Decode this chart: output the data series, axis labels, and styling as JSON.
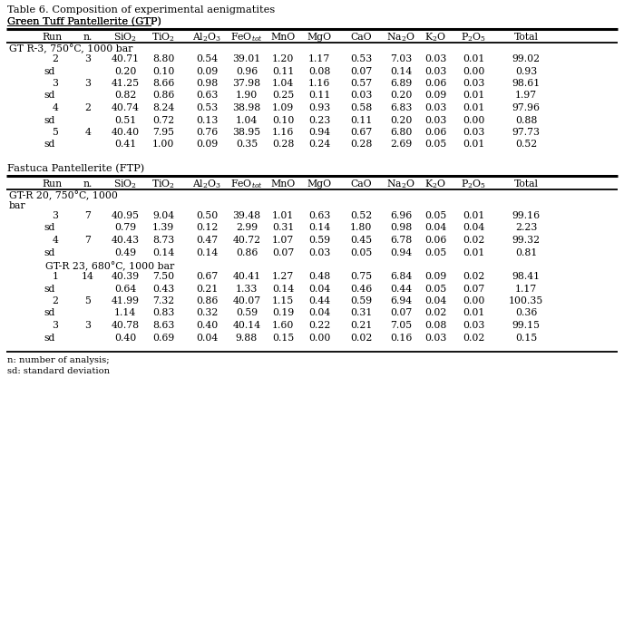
{
  "title": "Table 6. Composition of experimental aenigmatites",
  "subtitle1": "Green Tuff Pantellerite (GTP)",
  "subtitle2": "Fastuca Pantellerite (FTP)",
  "section1_header": "GT R-3, 750°C, 1000 bar",
  "section1_rows": [
    [
      "2",
      "3",
      "40.71",
      "8.80",
      "0.54",
      "39.01",
      "1.20",
      "1.17",
      "0.53",
      "7.03",
      "0.03",
      "0.01",
      "99.02"
    ],
    [
      "sd",
      "",
      "0.20",
      "0.10",
      "0.09",
      "0.96",
      "0.11",
      "0.08",
      "0.07",
      "0.14",
      "0.03",
      "0.00",
      "0.93"
    ],
    [
      "3",
      "3",
      "41.25",
      "8.66",
      "0.98",
      "37.98",
      "1.04",
      "1.16",
      "0.57",
      "6.89",
      "0.06",
      "0.03",
      "98.61"
    ],
    [
      "sd",
      "",
      "0.82",
      "0.86",
      "0.63",
      "1.90",
      "0.25",
      "0.11",
      "0.03",
      "0.20",
      "0.09",
      "0.01",
      "1.97"
    ],
    [
      "4",
      "2",
      "40.74",
      "8.24",
      "0.53",
      "38.98",
      "1.09",
      "0.93",
      "0.58",
      "6.83",
      "0.03",
      "0.01",
      "97.96"
    ],
    [
      "sd",
      "",
      "0.51",
      "0.72",
      "0.13",
      "1.04",
      "0.10",
      "0.23",
      "0.11",
      "0.20",
      "0.03",
      "0.00",
      "0.88"
    ],
    [
      "5",
      "4",
      "40.40",
      "7.95",
      "0.76",
      "38.95",
      "1.16",
      "0.94",
      "0.67",
      "6.80",
      "0.06",
      "0.03",
      "97.73"
    ],
    [
      "sd",
      "",
      "0.41",
      "1.00",
      "0.09",
      "0.35",
      "0.28",
      "0.24",
      "0.28",
      "2.69",
      "0.05",
      "0.01",
      "0.52"
    ]
  ],
  "section2_header": "GT-R 20, 750°C, 1000",
  "section2_header2": "bar",
  "section2_rows": [
    [
      "3",
      "7",
      "40.95",
      "9.04",
      "0.50",
      "39.48",
      "1.01",
      "0.63",
      "0.52",
      "6.96",
      "0.05",
      "0.01",
      "99.16"
    ],
    [
      "sd",
      "",
      "0.79",
      "1.39",
      "0.12",
      "2.99",
      "0.31",
      "0.14",
      "1.80",
      "0.98",
      "0.04",
      "0.04",
      "2.23"
    ],
    [
      "4",
      "7",
      "40.43",
      "8.73",
      "0.47",
      "40.72",
      "1.07",
      "0.59",
      "0.45",
      "6.78",
      "0.06",
      "0.02",
      "99.32"
    ],
    [
      "sd",
      "",
      "0.49",
      "0.14",
      "0.14",
      "0.86",
      "0.07",
      "0.03",
      "0.05",
      "0.94",
      "0.05",
      "0.01",
      "0.81"
    ]
  ],
  "section3_header": "GT-R 23, 680°C, 1000 bar",
  "section3_rows": [
    [
      "1",
      "14",
      "40.39",
      "7.50",
      "0.67",
      "40.41",
      "1.27",
      "0.48",
      "0.75",
      "6.84",
      "0.09",
      "0.02",
      "98.41"
    ],
    [
      "sd",
      "",
      "0.64",
      "0.43",
      "0.21",
      "1.33",
      "0.14",
      "0.04",
      "0.46",
      "0.44",
      "0.05",
      "0.07",
      "1.17"
    ],
    [
      "2",
      "5",
      "41.99",
      "7.32",
      "0.86",
      "40.07",
      "1.15",
      "0.44",
      "0.59",
      "6.94",
      "0.04",
      "0.00",
      "100.35"
    ],
    [
      "sd",
      "",
      "1.14",
      "0.83",
      "0.32",
      "0.59",
      "0.19",
      "0.04",
      "0.31",
      "0.07",
      "0.02",
      "0.01",
      "0.36"
    ],
    [
      "3",
      "3",
      "40.78",
      "8.63",
      "0.40",
      "40.14",
      "1.60",
      "0.22",
      "0.21",
      "7.05",
      "0.08",
      "0.03",
      "99.15"
    ],
    [
      "sd",
      "",
      "0.40",
      "0.69",
      "0.04",
      "9.88",
      "0.15",
      "0.00",
      "0.02",
      "0.16",
      "0.03",
      "0.02",
      "0.15"
    ]
  ],
  "footnote1": "n: number of analysis;",
  "footnote2": "sd: standard deviation",
  "col_headers": [
    "Run",
    "n.",
    "SiO$_2$",
    "TiO$_2$",
    "Al$_2$O$_3$",
    "FeO$_{tot}$",
    "MnO",
    "MgO",
    "CaO",
    "Na$_2$O",
    "K$_2$O",
    "P$_2$O$_5$",
    "Total"
  ],
  "bg_color": "#ffffff"
}
